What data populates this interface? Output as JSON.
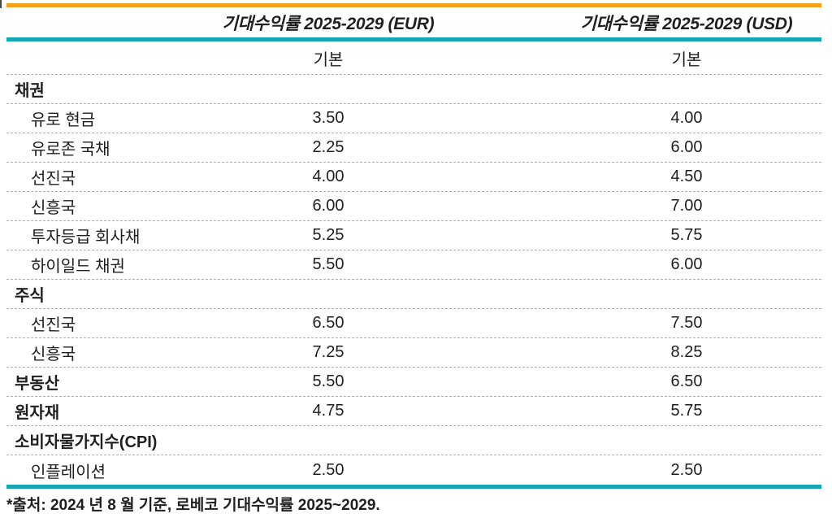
{
  "accent_colors": {
    "top_rule": "#F8A01C",
    "header_rule": "#14A5B6",
    "row_divider": "#6FC8E3",
    "text": "#1F1F1F"
  },
  "table": {
    "column_headers": [
      {
        "label": "기대수익률 2025-2029 (EUR)"
      },
      {
        "label": "기대수익률 2025-2029 (USD)"
      }
    ],
    "sub_headers": {
      "eur": "기본",
      "usd": "기본"
    },
    "rows": [
      {
        "label": "채권",
        "bold": true,
        "indent": false,
        "eur": "",
        "usd": ""
      },
      {
        "label": "유로 현금",
        "bold": false,
        "indent": true,
        "eur": "3.50",
        "usd": "4.00"
      },
      {
        "label": "유로존 국채",
        "bold": false,
        "indent": true,
        "eur": "2.25",
        "usd": "6.00"
      },
      {
        "label": "선진국",
        "bold": false,
        "indent": true,
        "eur": "4.00",
        "usd": "4.50"
      },
      {
        "label": "신흥국",
        "bold": false,
        "indent": true,
        "eur": "6.00",
        "usd": "7.00"
      },
      {
        "label": "투자등급 회사채",
        "bold": false,
        "indent": true,
        "eur": "5.25",
        "usd": "5.75"
      },
      {
        "label": "하이일드 채권",
        "bold": false,
        "indent": true,
        "eur": "5.50",
        "usd": "6.00"
      },
      {
        "label": "주식",
        "bold": true,
        "indent": false,
        "eur": "",
        "usd": ""
      },
      {
        "label": "선진국",
        "bold": false,
        "indent": true,
        "eur": "6.50",
        "usd": "7.50"
      },
      {
        "label": "신흥국",
        "bold": false,
        "indent": true,
        "eur": "7.25",
        "usd": "8.25"
      },
      {
        "label": "부동산",
        "bold": true,
        "indent": false,
        "eur": "5.50",
        "usd": "6.50"
      },
      {
        "label": "원자재",
        "bold": true,
        "indent": false,
        "eur": "4.75",
        "usd": "5.75"
      },
      {
        "label": "소비자물가지수(CPI)",
        "bold": true,
        "indent": false,
        "eur": "",
        "usd": ""
      },
      {
        "label": "인플레이션",
        "bold": false,
        "indent": true,
        "eur": "2.50",
        "usd": "2.50"
      }
    ]
  },
  "footer": {
    "source_note": "*출처: 2024 년 8 월 기준, 로베코 기대수익률 2025~2029."
  }
}
